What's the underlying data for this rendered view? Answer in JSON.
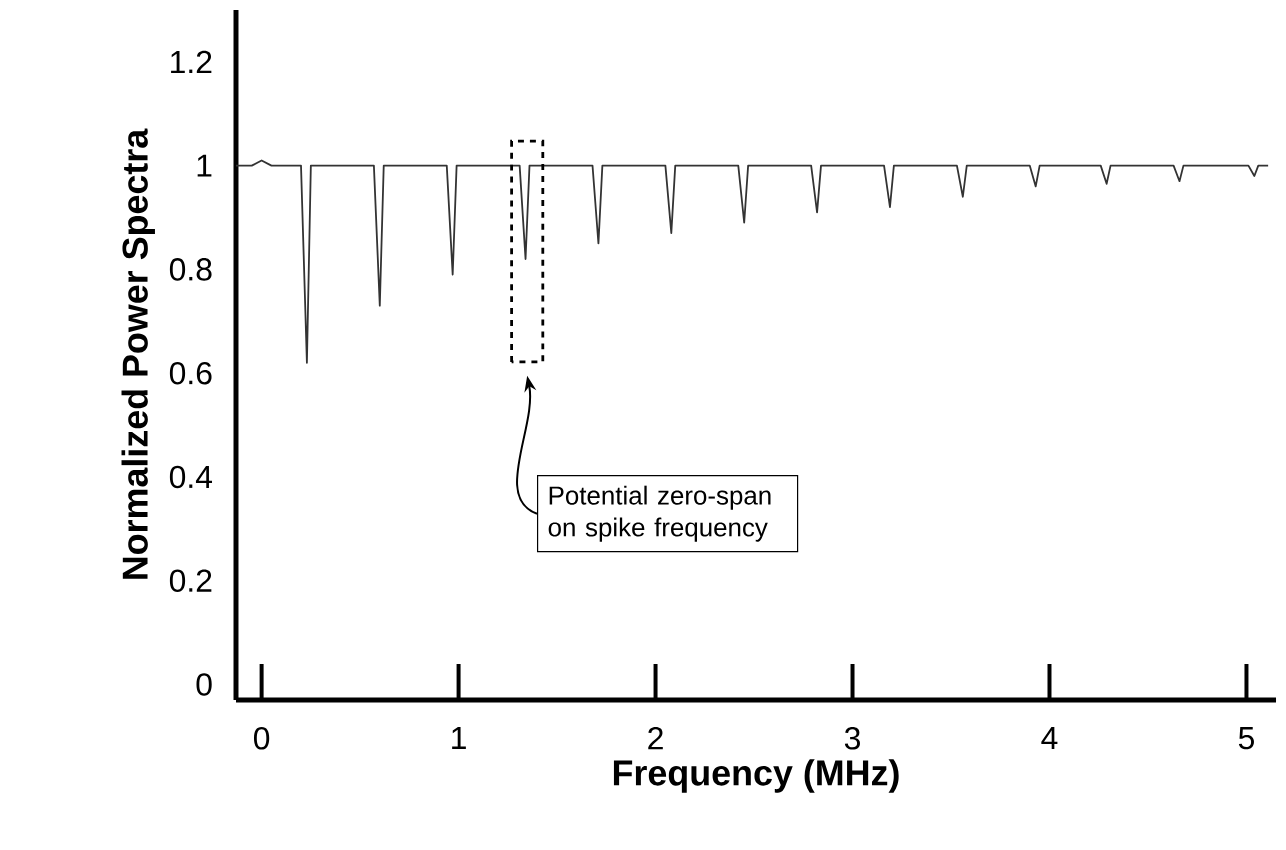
{
  "chart_data": {
    "type": "line",
    "xlabel": "Frequency (MHz)",
    "ylabel": "Normalized Power Spectra",
    "x": [
      -0.13,
      -0.05,
      0.0,
      0.05,
      0.2,
      0.23,
      0.25,
      0.57,
      0.6,
      0.62,
      0.94,
      0.97,
      0.99,
      1.31,
      1.34,
      1.36,
      1.68,
      1.71,
      1.73,
      2.05,
      2.08,
      2.1,
      2.42,
      2.45,
      2.47,
      2.79,
      2.82,
      2.84,
      3.16,
      3.19,
      3.21,
      3.53,
      3.56,
      3.58,
      3.9,
      3.93,
      3.95,
      4.26,
      4.29,
      4.31,
      4.63,
      4.66,
      4.68,
      5.01,
      5.04,
      5.06,
      5.11
    ],
    "values": [
      1.0,
      1.0,
      1.01,
      1.0,
      1.0,
      0.62,
      1.0,
      1.0,
      0.73,
      1.0,
      1.0,
      0.79,
      1.0,
      1.0,
      0.82,
      1.0,
      1.0,
      0.85,
      1.0,
      1.0,
      0.87,
      1.0,
      1.0,
      0.89,
      1.0,
      1.0,
      0.91,
      1.0,
      1.0,
      0.92,
      1.0,
      1.0,
      0.94,
      1.0,
      1.0,
      0.96,
      1.0,
      1.0,
      0.965,
      1.0,
      1.0,
      0.97,
      1.0,
      1.0,
      0.98,
      1.0,
      1.0
    ],
    "color": "#333333",
    "xlim": [
      -0.13,
      5.15
    ],
    "ylim": [
      -0.03,
      1.3
    ],
    "xticks": [
      0,
      1,
      2,
      3,
      4,
      5
    ],
    "yticks": [
      0,
      0.2,
      0.4,
      0.6,
      0.8,
      1,
      1.2
    ],
    "grid": false,
    "marker": "none",
    "line_style": "solid",
    "annotations": [
      "Potential zero-span on spike frequency"
    ]
  }
}
